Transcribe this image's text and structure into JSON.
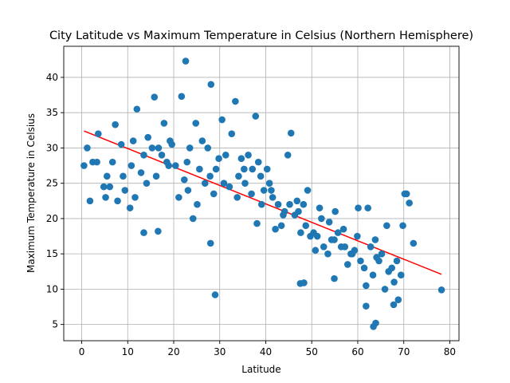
{
  "chart_data": {
    "type": "scatter",
    "title": "City Latitude vs Maximum Temperature in Celsius (Northern Hemisphere)",
    "xlabel": "Latitude",
    "ylabel": "Maximum Temperature in Celsius",
    "xlim": [
      -3.9,
      82
    ],
    "ylim": [
      2.7,
      44.4
    ],
    "xticks": [
      0,
      10,
      20,
      30,
      40,
      50,
      60,
      70,
      80
    ],
    "yticks": [
      5,
      10,
      15,
      20,
      25,
      30,
      35,
      40
    ],
    "grid": true,
    "colors": {
      "points": "#1f77b4",
      "regression": "#ff0000"
    },
    "regression_line": {
      "x": [
        0.5,
        78.2
      ],
      "y": [
        32.4,
        12.1
      ]
    },
    "x": [
      0.5,
      1.2,
      2.4,
      3.6,
      4.8,
      5.5,
      6.7,
      7.3,
      8.6,
      9.4,
      10.5,
      11.2,
      12.0,
      13.5,
      14.4,
      15.8,
      16.7,
      17.9,
      18.5,
      19.6,
      20.4,
      21.7,
      22.9,
      23.5,
      24.8,
      25.6,
      26.2,
      27.4,
      28.1,
      29.2,
      30.5,
      31.3,
      32.6,
      33.4,
      34.7,
      35.5,
      36.2,
      37.8,
      38.4,
      39.6,
      40.3,
      41.5,
      42.7,
      43.4,
      44.8,
      45.5,
      46.3,
      47.6,
      48.2,
      49.7,
      50.4,
      51.2,
      52.6,
      53.5,
      54.3,
      55.7,
      56.4,
      57.8,
      58.5,
      59.3,
      60.6,
      61.4,
      62.8,
      63.3,
      64.6,
      65.2,
      66.7,
      67.4,
      68.5,
      69.4,
      70.6,
      71.2,
      72.1,
      78.2,
      1.8,
      3.3,
      5.2,
      6.1,
      7.8,
      9.0,
      10.8,
      11.6,
      12.9,
      14.1,
      15.3,
      16.2,
      17.4,
      18.9,
      19.2,
      21.1,
      22.3,
      23.1,
      24.2,
      25.1,
      26.8,
      27.9,
      28.7,
      29.8,
      30.9,
      32.1,
      33.8,
      34.1,
      35.3,
      36.9,
      37.1,
      38.9,
      39.1,
      40.8,
      41.2,
      42.1,
      43.8,
      44.1,
      45.2,
      46.8,
      47.1,
      48.7,
      49.1,
      50.8,
      51.7,
      52.1,
      53.8,
      54.9,
      55.1,
      56.9,
      57.2,
      58.8,
      59.9,
      60.1,
      61.8,
      62.2,
      63.8,
      64.1,
      65.9,
      66.3,
      67.9,
      68.8,
      69.8,
      70.2,
      22.6,
      28.0,
      29.0,
      16.6,
      38.1,
      63.4,
      67.8,
      13.5,
      63.9,
      54.9,
      61.8,
      47.5,
      48.3
    ],
    "y": [
      27.5,
      30.0,
      28.0,
      32.0,
      24.5,
      26.0,
      28.0,
      33.3,
      30.5,
      24.0,
      21.5,
      31.0,
      35.5,
      29.0,
      31.5,
      37.2,
      30.0,
      33.5,
      28.0,
      30.5,
      27.5,
      37.3,
      28.0,
      30.0,
      33.5,
      27.0,
      31.0,
      30.0,
      39.0,
      27.0,
      34.0,
      29.0,
      32.0,
      36.6,
      28.5,
      25.0,
      29.0,
      34.5,
      28.0,
      24.0,
      27.0,
      23.0,
      22.0,
      19.0,
      29.0,
      32.1,
      20.5,
      18.0,
      22.0,
      17.5,
      18.0,
      17.5,
      16.0,
      15.0,
      17.0,
      18.0,
      16.0,
      13.5,
      15.0,
      15.5,
      14.0,
      13.0,
      16.0,
      12.0,
      14.0,
      15.0,
      12.5,
      13.0,
      14.0,
      12.0,
      23.5,
      22.2,
      16.5,
      9.9,
      22.5,
      28.0,
      23.0,
      24.5,
      22.5,
      26.0,
      27.5,
      23.0,
      26.5,
      25.0,
      30.0,
      26.0,
      29.0,
      27.5,
      31.0,
      23.0,
      25.5,
      24.0,
      20.0,
      22.0,
      25.0,
      26.0,
      23.5,
      28.5,
      25.0,
      24.5,
      23.0,
      26.0,
      27.0,
      23.5,
      27.0,
      26.0,
      22.0,
      25.0,
      24.0,
      18.5,
      20.5,
      21.0,
      22.0,
      22.5,
      21.0,
      19.0,
      24.0,
      15.5,
      21.5,
      20.0,
      19.5,
      17.0,
      21.0,
      18.5,
      16.0,
      15.0,
      17.5,
      21.5,
      10.5,
      21.5,
      17.0,
      14.5,
      10.0,
      19.0,
      11.0,
      8.5,
      19.0,
      23.5,
      42.3,
      16.5,
      9.2,
      18.2,
      19.3,
      4.7,
      7.8,
      18.0,
      5.2,
      11.5,
      7.6,
      10.8,
      10.9
    ]
  }
}
